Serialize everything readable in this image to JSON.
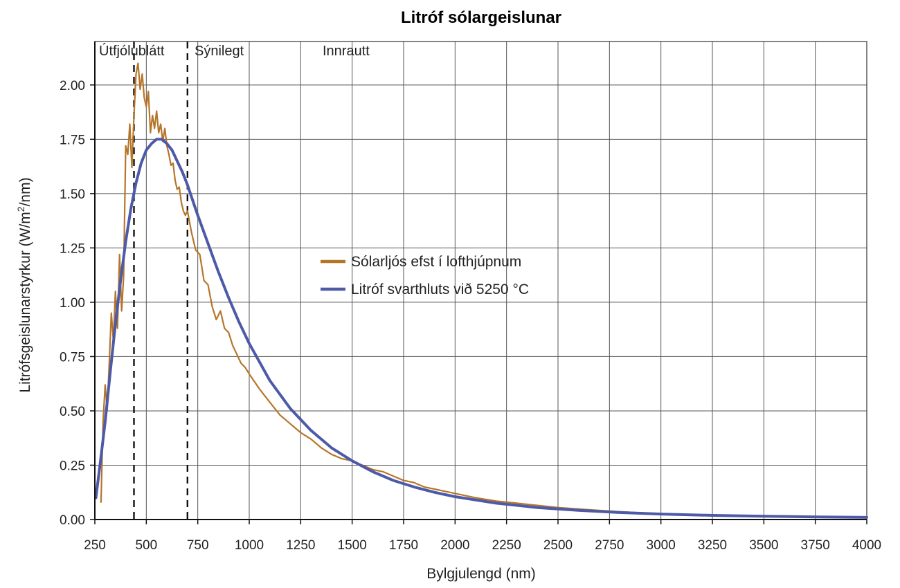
{
  "chart_data": {
    "type": "line",
    "title": "Litróf sólargeislunar",
    "xlabel": "Bylgjulengd (nm)",
    "ylabel_main": "Litrófsgeislunarstyrkur (W/m",
    "ylabel_sup": "2",
    "ylabel_end": "/nm)",
    "xlim": [
      250,
      4000
    ],
    "ylim": [
      0,
      2.2
    ],
    "x_ticks": [
      250,
      500,
      750,
      1000,
      1250,
      1500,
      1750,
      2000,
      2250,
      2500,
      2750,
      3000,
      3250,
      3500,
      3750,
      4000
    ],
    "x_tick_labels": [
      "250",
      "500",
      "750",
      "1000",
      "1250",
      "1500",
      "1750",
      "2000",
      "2250",
      "2500",
      "2750",
      "3000",
      "3250",
      "3500",
      "3750",
      "4000"
    ],
    "y_ticks": [
      0,
      0.25,
      0.5,
      0.75,
      1.0,
      1.25,
      1.5,
      1.75,
      2.0
    ],
    "y_tick_labels": [
      "0.00",
      "0.25",
      "0.50",
      "0.75",
      "1.00",
      "1.25",
      "1.50",
      "1.75",
      "2.00"
    ],
    "grid": true,
    "legend_placement": "center",
    "regions": [
      {
        "label": "Útfjólublátt",
        "from": 250,
        "to": 440
      },
      {
        "label": "Sýnilegt",
        "from": 440,
        "to": 700
      },
      {
        "label": "Innrautt",
        "from": 700,
        "to": 4000
      }
    ],
    "region_dividers": [
      440,
      700
    ],
    "series": [
      {
        "name": "Sólarljós efst í lofthjúpnum",
        "color": "#b5762a",
        "x": [
          280,
          290,
          300,
          310,
          320,
          330,
          340,
          350,
          360,
          370,
          380,
          390,
          400,
          410,
          420,
          430,
          440,
          450,
          460,
          470,
          480,
          490,
          500,
          510,
          520,
          530,
          540,
          550,
          560,
          570,
          580,
          590,
          600,
          610,
          620,
          630,
          640,
          650,
          660,
          670,
          680,
          690,
          700,
          720,
          740,
          760,
          780,
          800,
          820,
          840,
          860,
          880,
          900,
          920,
          940,
          960,
          980,
          1000,
          1050,
          1100,
          1150,
          1200,
          1250,
          1300,
          1350,
          1400,
          1450,
          1500,
          1550,
          1600,
          1650,
          1700,
          1750,
          1800,
          1850,
          1900,
          1950,
          2000,
          2100,
          2200,
          2300,
          2400,
          2500,
          2600,
          2700,
          2800,
          2900,
          3000,
          3200,
          3400,
          3600,
          3800,
          4000
        ],
        "y": [
          0.08,
          0.45,
          0.62,
          0.5,
          0.72,
          0.95,
          0.82,
          1.05,
          0.88,
          1.22,
          0.96,
          1.12,
          1.72,
          1.68,
          1.82,
          1.62,
          1.86,
          2.05,
          2.1,
          1.98,
          2.05,
          1.94,
          1.9,
          1.97,
          1.78,
          1.86,
          1.8,
          1.88,
          1.78,
          1.82,
          1.74,
          1.8,
          1.72,
          1.68,
          1.63,
          1.64,
          1.56,
          1.52,
          1.53,
          1.46,
          1.42,
          1.4,
          1.42,
          1.32,
          1.24,
          1.22,
          1.1,
          1.08,
          0.98,
          0.92,
          0.96,
          0.88,
          0.86,
          0.8,
          0.76,
          0.72,
          0.7,
          0.67,
          0.6,
          0.54,
          0.48,
          0.44,
          0.4,
          0.37,
          0.33,
          0.3,
          0.28,
          0.27,
          0.25,
          0.23,
          0.22,
          0.2,
          0.18,
          0.17,
          0.15,
          0.14,
          0.13,
          0.12,
          0.1,
          0.085,
          0.075,
          0.065,
          0.055,
          0.048,
          0.042,
          0.036,
          0.031,
          0.027,
          0.021,
          0.017,
          0.014,
          0.012,
          0.01
        ]
      },
      {
        "name": "Litróf svarthluts við 5250 °C",
        "color": "#4d5aa8",
        "x": [
          255,
          275,
          300,
          325,
          350,
          375,
          400,
          425,
          450,
          475,
          500,
          525,
          550,
          575,
          600,
          625,
          650,
          675,
          700,
          725,
          750,
          800,
          850,
          900,
          950,
          1000,
          1100,
          1200,
          1300,
          1400,
          1500,
          1600,
          1700,
          1800,
          1900,
          2000,
          2200,
          2400,
          2600,
          2800,
          3000,
          3250,
          3500,
          3750,
          4000
        ],
        "y": [
          0.1,
          0.25,
          0.45,
          0.68,
          0.9,
          1.1,
          1.28,
          1.43,
          1.55,
          1.64,
          1.7,
          1.73,
          1.75,
          1.75,
          1.73,
          1.7,
          1.65,
          1.6,
          1.54,
          1.47,
          1.4,
          1.27,
          1.14,
          1.02,
          0.91,
          0.81,
          0.64,
          0.51,
          0.41,
          0.33,
          0.27,
          0.22,
          0.18,
          0.15,
          0.125,
          0.105,
          0.075,
          0.055,
          0.042,
          0.032,
          0.025,
          0.019,
          0.015,
          0.012,
          0.01
        ]
      }
    ]
  }
}
